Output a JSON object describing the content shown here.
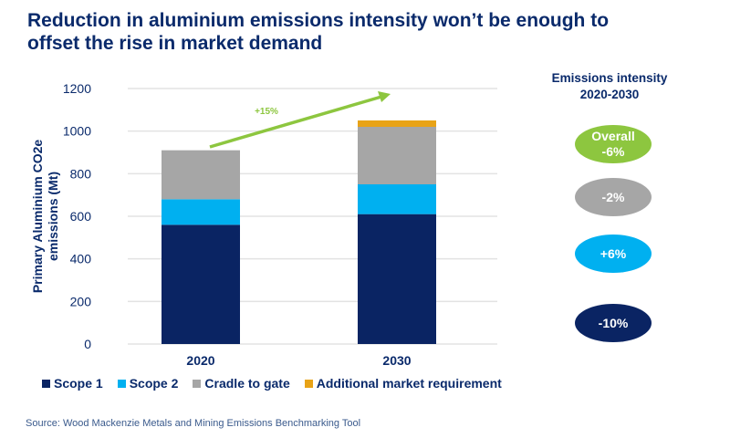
{
  "title": "Reduction in aluminium emissions intensity won’t be enough to offset the rise in market demand",
  "source": "Source: Wood Mackenzie Metals and Mining Emissions Benchmarking Tool",
  "side_panel": {
    "title_line1": "Emissions intensity",
    "title_line2": "2020-2030",
    "items": [
      {
        "label": "Overall",
        "value": "-6%",
        "color": "#8dc63f"
      },
      {
        "label": "",
        "value": "-2%",
        "color": "#a6a6a6"
      },
      {
        "label": "",
        "value": "+6%",
        "color": "#00b0f0"
      },
      {
        "label": "",
        "value": "-10%",
        "color": "#0a2463"
      }
    ]
  },
  "chart_data": {
    "type": "bar",
    "stacked": true,
    "categories": [
      "2020",
      "2030"
    ],
    "series": [
      {
        "name": "Scope 1",
        "values": [
          560,
          610
        ],
        "color": "#0a2463"
      },
      {
        "name": "Scope 2",
        "values": [
          120,
          140
        ],
        "color": "#00b0f0"
      },
      {
        "name": "Cradle to gate",
        "values": [
          230,
          270
        ],
        "color": "#a6a6a6"
      },
      {
        "name": "Additional market requirement",
        "values": [
          0,
          30
        ],
        "color": "#e8a317"
      }
    ],
    "ylabel": "Primary Aluminium CO2e emissions (Mt)",
    "ylim": [
      0,
      1200
    ],
    "yticks": [
      0,
      200,
      400,
      600,
      800,
      1000,
      1200
    ],
    "grid": true,
    "legend": "bottom",
    "annotation": {
      "text": "+15%",
      "color": "#8dc63f"
    }
  }
}
